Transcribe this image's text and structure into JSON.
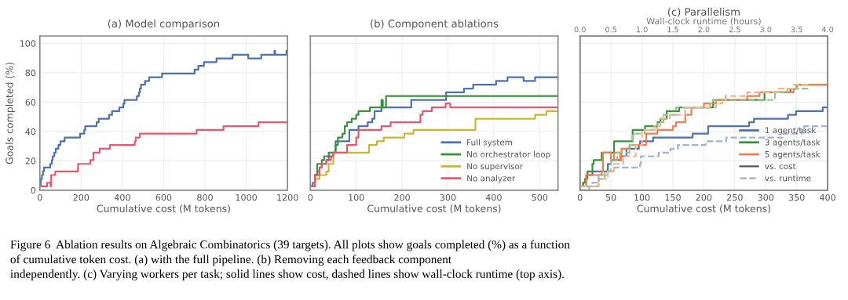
{
  "chart_data": [
    {
      "type": "step",
      "title": "(a) Model comparison",
      "xlabel": "Cumulative cost (M tokens)",
      "ylabel": "Goals completed (%)",
      "xlim": [
        0,
        1200
      ],
      "xticks": [
        0,
        200,
        400,
        600,
        800,
        1000,
        1200
      ],
      "ylim": [
        0,
        105
      ],
      "yticks": [
        0,
        20,
        40,
        60,
        80,
        100
      ],
      "grid": true,
      "legend": false,
      "series": [
        {
          "color": "#4c72b0",
          "x": [
            0,
            5,
            10,
            15,
            20,
            50,
            58,
            62,
            70,
            77,
            90,
            100,
            120,
            195,
            215,
            220,
            275,
            285,
            335,
            350,
            385,
            405,
            410,
            470,
            480,
            485,
            490,
            510,
            530,
            592,
            750,
            768,
            795,
            856,
            934,
            1010,
            1073,
            1137,
            1140,
            1195,
            1200
          ],
          "values": [
            2.6,
            7.7,
            10.3,
            12.8,
            15.4,
            17.9,
            20.5,
            23.1,
            25.6,
            28.2,
            30.8,
            33.3,
            35.9,
            38.5,
            41.0,
            43.6,
            46.2,
            48.7,
            51.3,
            53.8,
            56.4,
            59.0,
            61.5,
            64.1,
            66.7,
            69.2,
            71.8,
            74.4,
            76.9,
            79.5,
            82.1,
            84.6,
            87.2,
            89.7,
            92.3,
            89.7,
            92.3,
            94.9,
            92.3,
            94.9,
            94.9
          ]
        },
        {
          "color": "#e8576e",
          "x": [
            0,
            35,
            52,
            55,
            75,
            185,
            245,
            260,
            290,
            340,
            460,
            465,
            485,
            760,
            890,
            1060,
            1200
          ],
          "values": [
            2.6,
            5.1,
            2.6,
            10.3,
            12.8,
            17.9,
            20.5,
            25.6,
            28.2,
            30.8,
            33.3,
            35.9,
            38.5,
            41.0,
            43.6,
            46.2,
            46.2
          ]
        }
      ],
      "annotations": [
        "Figure 6  Ablation results on Algebraic Combinatorics (39 targets). All plots show goals completed (%) as a function\nof cumulative token cost. (a) with the full pipeline. (b) Removing each feedback component\nindependently. (c) Varying workers per task; solid lines show cost, dashed lines show wall-clock runtime (top axis)."
      ]
    },
    {
      "type": "step",
      "title": "(b) Component ablations",
      "xlabel": "Cumulative cost (M tokens)",
      "xlim": [
        0,
        540
      ],
      "xticks": [
        0,
        100,
        200,
        300,
        400,
        500
      ],
      "ylim": [
        0,
        105
      ],
      "yticks": [
        0,
        20,
        40,
        60,
        80,
        100
      ],
      "grid": true,
      "legend": "lower right",
      "tick_labels": "x",
      "series": [
        {
          "name": "Full system",
          "color": "#4c72b0",
          "x": [
            0,
            5,
            10,
            15,
            20,
            25,
            35,
            40,
            50,
            55,
            85,
            105,
            125,
            135,
            140,
            155,
            165,
            220,
            296,
            335,
            355,
            405,
            430,
            465,
            490,
            540
          ],
          "values": [
            2.6,
            5.1,
            10.3,
            12.8,
            15.4,
            17.9,
            20.5,
            23.1,
            25.6,
            33.3,
            41.0,
            43.6,
            46.2,
            48.7,
            53.8,
            56.4,
            56.4,
            61.5,
            66.7,
            69.2,
            71.8,
            74.4,
            76.9,
            74.4,
            76.9,
            76.9
          ]
        },
        {
          "name": "No orchestrator loop",
          "color": "#3a923a",
          "x": [
            0,
            10,
            15,
            25,
            30,
            40,
            55,
            60,
            70,
            75,
            80,
            90,
            100,
            105,
            130,
            155,
            158,
            165,
            540
          ],
          "values": [
            2.6,
            10.3,
            17.9,
            20.5,
            23.1,
            25.6,
            30.8,
            35.9,
            38.5,
            43.6,
            46.2,
            48.7,
            51.3,
            53.8,
            56.4,
            61.5,
            56.4,
            64.1,
            64.1
          ]
        },
        {
          "name": "No supervisor",
          "color": "#c9b92f",
          "x": [
            0,
            10,
            20,
            35,
            40,
            50,
            128,
            145,
            160,
            205,
            225,
            360,
            490,
            515,
            540
          ],
          "values": [
            2.6,
            7.7,
            10.3,
            12.8,
            17.9,
            25.6,
            30.8,
            33.3,
            35.9,
            38.5,
            41.0,
            48.7,
            51.3,
            53.8,
            53.8
          ]
        },
        {
          "name": "No analyzer",
          "color": "#e8576e",
          "x": [
            0,
            10,
            20,
            25,
            35,
            45,
            50,
            80,
            100,
            105,
            155,
            175,
            240,
            245,
            265,
            295,
            305,
            540
          ],
          "values": [
            2.6,
            10.3,
            15.4,
            17.9,
            20.5,
            23.1,
            25.6,
            30.8,
            35.9,
            41.0,
            43.6,
            46.2,
            51.3,
            53.8,
            56.4,
            59.0,
            56.4,
            56.4
          ]
        }
      ]
    },
    {
      "type": "step",
      "title": "(c) Parallelism",
      "xlabel": "Cumulative cost (M tokens)",
      "x2label": "Wall-clock runtime (hours)",
      "xlim": [
        0,
        400
      ],
      "xticks": [
        0,
        50,
        100,
        150,
        200,
        250,
        300,
        350,
        400
      ],
      "x2lim": [
        0,
        4
      ],
      "x2ticks": [
        {
          "value": 0,
          "label": "0.0"
        },
        {
          "value": 0.5,
          "label": "0.5"
        },
        {
          "value": 1,
          "label": "1.0"
        },
        {
          "value": 1.5,
          "label": "1.5"
        },
        {
          "value": 2,
          "label": "2.0"
        },
        {
          "value": 2.5,
          "label": "2.5"
        },
        {
          "value": 3,
          "label": "3.0"
        },
        {
          "value": 3.5,
          "label": "3.5"
        },
        {
          "value": 4,
          "label": "4.0"
        }
      ],
      "ylim": [
        0,
        105
      ],
      "yticks": [
        0,
        20,
        40,
        60,
        80,
        100
      ],
      "grid": true,
      "legend": "lower right",
      "tick_labels": "x",
      "series": [
        {
          "name": "1 agent/task",
          "color": "#4c72b0",
          "x": [
            0,
            5,
            10,
            20,
            45,
            50,
            65,
            75,
            95,
            97,
            118,
            182,
            207,
            273,
            281,
            336,
            349,
            392,
            400
          ],
          "values": [
            2.6,
            5.1,
            10.3,
            12.8,
            17.9,
            20.5,
            23.1,
            28.2,
            30.8,
            33.3,
            35.9,
            38.5,
            43.6,
            46.2,
            48.7,
            51.3,
            53.8,
            56.4,
            56.4
          ]
        },
        {
          "name": "3 agents/task",
          "color": "#3a923a",
          "x": [
            0,
            5,
            8,
            12,
            20,
            22,
            35,
            55,
            85,
            105,
            125,
            130,
            140,
            160,
            215,
            298,
            340,
            350,
            400
          ],
          "values": [
            2.6,
            5.1,
            7.7,
            12.8,
            17.9,
            20.5,
            25.6,
            33.3,
            41.0,
            43.6,
            46.2,
            48.7,
            53.8,
            56.4,
            61.5,
            66.7,
            69.2,
            71.8,
            71.8
          ]
        },
        {
          "name": "5 agents/task",
          "color": "#f07e4f",
          "x": [
            0,
            10,
            35,
            37,
            50,
            55,
            65,
            67,
            80,
            107,
            125,
            150,
            155,
            170,
            180,
            200,
            220,
            270,
            290,
            345,
            350,
            400
          ],
          "values": [
            2.6,
            10.3,
            12.8,
            25.6,
            20.5,
            25.6,
            20.5,
            28.2,
            30.8,
            38.5,
            41.0,
            43.6,
            46.2,
            51.3,
            56.4,
            59.0,
            61.5,
            64.1,
            66.7,
            69.2,
            71.8,
            71.8
          ]
        },
        {
          "axis": "x2",
          "line_style": "dashed",
          "color": "#9fb3d6",
          "x": [
            0,
            0.1,
            0.2,
            0.3,
            0.46,
            0.55,
            0.97,
            0.98,
            1.27,
            1.46,
            1.58,
            2.03,
            2.36,
            3.28,
            3.58,
            3.62,
            4.0
          ],
          "values": [
            0,
            2.6,
            5.1,
            10.3,
            12.8,
            15.4,
            17.9,
            23.1,
            25.6,
            28.2,
            30.8,
            33.3,
            35.9,
            38.5,
            41.0,
            43.6,
            43.6
          ]
        },
        {
          "axis": "x2",
          "line_style": "dashed",
          "color": "#8fc98f",
          "x": [
            0,
            0.15,
            0.3,
            0.4,
            0.5,
            0.6,
            0.8,
            0.85,
            1.05,
            1.25,
            1.35,
            1.55,
            2.1,
            2.15,
            3.15,
            3.35,
            3.72
          ],
          "values": [
            0,
            2.6,
            7.7,
            12.8,
            20.5,
            25.6,
            30.8,
            38.5,
            41.0,
            46.2,
            51.3,
            56.4,
            59.0,
            61.5,
            66.7,
            69.2,
            69.2
          ]
        },
        {
          "axis": "x2",
          "line_style": "dashed",
          "color": "#f5b38f",
          "x": [
            0,
            0.3,
            0.45,
            0.55,
            0.7,
            0.9,
            1.0,
            1.2,
            1.3,
            1.45,
            1.7,
            2.2,
            2.3,
            2.35,
            2.7,
            3.2,
            3.45,
            3.72
          ],
          "values": [
            2.6,
            7.7,
            12.8,
            17.9,
            23.1,
            30.8,
            41.0,
            43.6,
            48.7,
            51.3,
            56.4,
            59.0,
            61.5,
            64.1,
            66.7,
            69.2,
            71.8,
            71.8
          ]
        }
      ],
      "annotations": [
        "vs. cost",
        "vs. runtime"
      ]
    }
  ]
}
